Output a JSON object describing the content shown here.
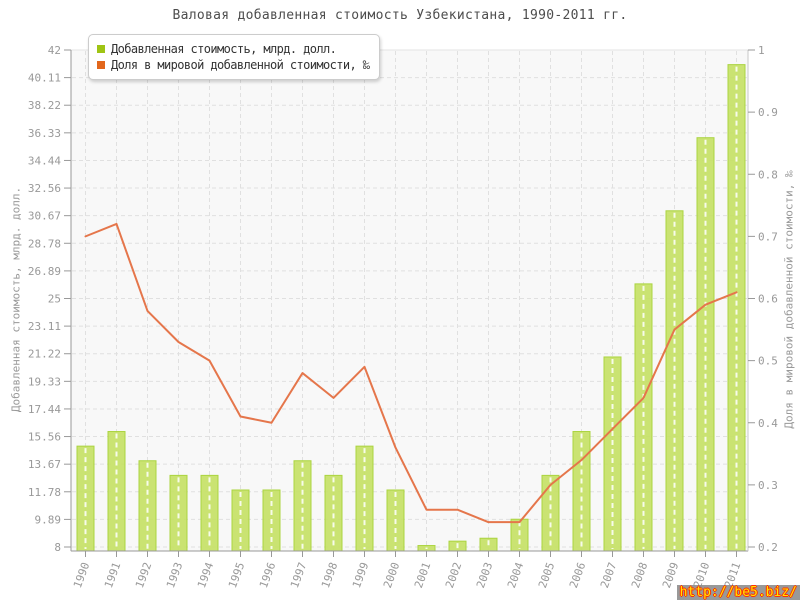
{
  "title": "Валовая добавленная стоимость Узбекистана, 1990-2011 гг.",
  "legend": {
    "items": [
      {
        "label": "Добавленная стоимость, млрд. долл.",
        "marker_color": "#9FC414"
      },
      {
        "label": "Доля в мировой добавленной стоимости, ‰",
        "marker_color": "#E2671C"
      }
    ]
  },
  "watermark": {
    "text": "http://be5.biz/"
  },
  "colors": {
    "bar_fill": "#C6E166",
    "bar_stroke": "#ABD440",
    "bar_center_dash": "rgba(255,255,255,0.85)",
    "line": "#E5764B",
    "plot_bg": "#F8F8F8",
    "grid": "#E0E0E0",
    "axis_line": "#999999",
    "axis_text": "#999999",
    "title_text": "#4D4D4D"
  },
  "chart_data": {
    "type": "bar",
    "subtype": "bar+line combo, dual axis",
    "title": "Валовая добавленная стоимость Узбекистана, 1990-2011 гг.",
    "categories": [
      "1990",
      "1991",
      "1992",
      "1993",
      "1994",
      "1995",
      "1996",
      "1997",
      "1998",
      "1999",
      "2000",
      "2001",
      "2002",
      "2003",
      "2004",
      "2005",
      "2006",
      "2007",
      "2008",
      "2009",
      "2010",
      "2011"
    ],
    "series": [
      {
        "name": "Добавленная стоимость, млрд. долл.",
        "type": "bar",
        "axis": "left",
        "values": [
          14.9,
          15.9,
          13.9,
          12.9,
          12.9,
          11.9,
          11.9,
          13.9,
          12.9,
          14.9,
          11.9,
          8.1,
          8.4,
          8.6,
          9.9,
          12.9,
          15.9,
          21.0,
          26.0,
          31.0,
          36.0,
          41.0
        ]
      },
      {
        "name": "Доля в мировой добавленной стоимости, ‰",
        "type": "line",
        "axis": "right",
        "values": [
          0.7,
          0.72,
          0.58,
          0.53,
          0.5,
          0.41,
          0.4,
          0.48,
          0.44,
          0.49,
          0.36,
          0.26,
          0.26,
          0.24,
          0.24,
          0.3,
          0.34,
          0.39,
          0.44,
          0.55,
          0.59,
          0.61
        ]
      }
    ],
    "left_axis": {
      "label": "Добавленная стоимость, млрд. долл.",
      "min": 8,
      "max": 42,
      "tick_labels": [
        "42",
        "40.11",
        "38.22",
        "36.33",
        "34.44",
        "32.56",
        "30.67",
        "28.78",
        "26.89",
        "25",
        "23.11",
        "21.22",
        "19.33",
        "17.44",
        "15.56",
        "13.67",
        "11.78",
        "9.89",
        "8"
      ]
    },
    "right_axis": {
      "label": "Доля в мировой добавленной стоимости, ‰",
      "min": 0.2,
      "max": 1,
      "tick_labels": [
        "1",
        "0.9",
        "0.8",
        "0.7",
        "0.6",
        "0.5",
        "0.4",
        "0.3",
        "0.2"
      ]
    },
    "grid": true,
    "grid_style": "dashed",
    "legend_position": "top-left"
  }
}
